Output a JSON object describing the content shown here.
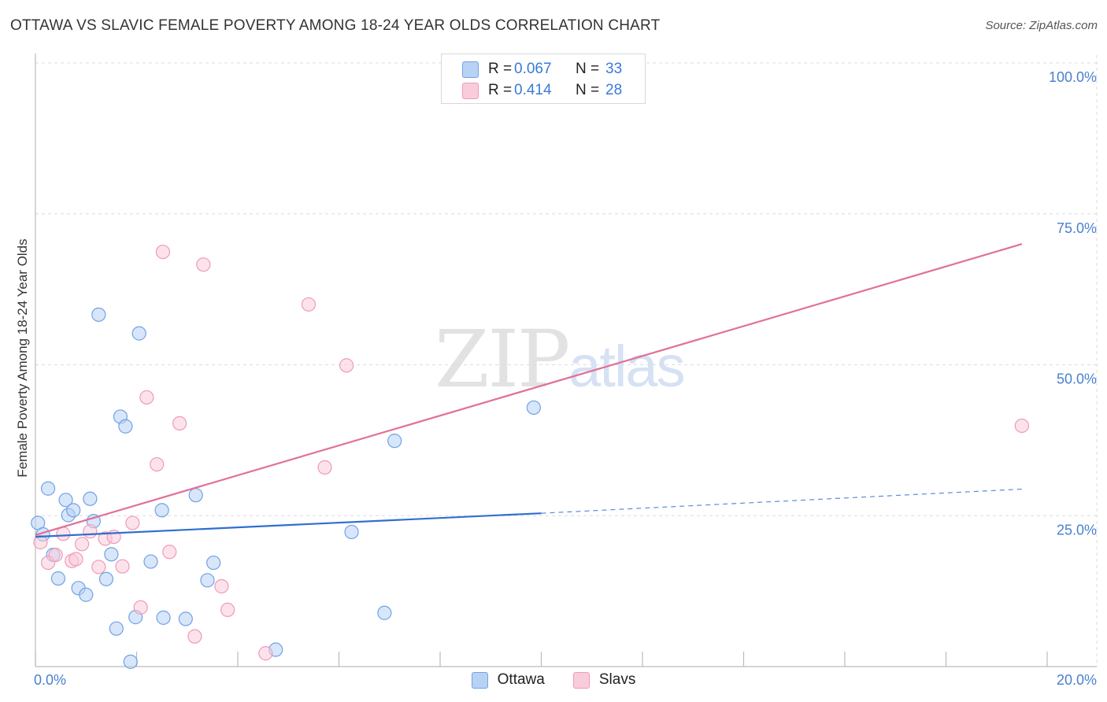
{
  "title": "OTTAWA VS SLAVIC FEMALE POVERTY AMONG 18-24 YEAR OLDS CORRELATION CHART",
  "source": "Source: ZipAtlas.com",
  "watermark": {
    "zip": "ZIP",
    "atlas": "atlas"
  },
  "legend": {
    "rows": [
      {
        "r_label": "R =",
        "r_value": "0.067",
        "n_label": "N =",
        "n_value": "33"
      },
      {
        "r_label": "R =",
        "r_value": "0.414",
        "n_label": "N =",
        "n_value": "28"
      }
    ]
  },
  "bottom_legend": [
    "Ottawa",
    "Slavs"
  ],
  "chart_data": {
    "type": "scatter",
    "title": "OTTAWA VS SLAVIC FEMALE POVERTY AMONG 18-24 YEAR OLDS CORRELATION CHART",
    "xlabel": "",
    "ylabel": "Female Poverty Among 18-24 Year Olds",
    "xlim": [
      0,
      20
    ],
    "ylim": [
      0,
      100
    ],
    "x_tick_labels": [
      "0.0%",
      "20.0%"
    ],
    "y_ticks": [
      25,
      50,
      75,
      100
    ],
    "y_tick_labels": [
      "25.0%",
      "50.0%",
      "75.0%",
      "100.0%"
    ],
    "series": [
      {
        "name": "Ottawa",
        "color": "#6fa3e6",
        "fill": "#b8d2f4",
        "line_color": "#2f6fd0",
        "trend": {
          "x0": 0,
          "y0": 21.5,
          "x1": 10,
          "y1": 25.4,
          "dash_to_x": 19.5,
          "dash_to_y": 29.4
        },
        "points": [
          [
            0.05,
            23.8
          ],
          [
            0.15,
            21.9
          ],
          [
            0.25,
            29.5
          ],
          [
            0.35,
            18.5
          ],
          [
            0.45,
            14.6
          ],
          [
            0.6,
            27.6
          ],
          [
            0.65,
            25.1
          ],
          [
            0.75,
            25.9
          ],
          [
            0.85,
            13.0
          ],
          [
            1.0,
            11.9
          ],
          [
            1.08,
            27.8
          ],
          [
            1.15,
            24.1
          ],
          [
            1.25,
            58.3
          ],
          [
            1.4,
            14.5
          ],
          [
            1.5,
            18.6
          ],
          [
            1.6,
            6.3
          ],
          [
            1.68,
            41.4
          ],
          [
            1.78,
            39.8
          ],
          [
            1.88,
            0.8
          ],
          [
            1.98,
            8.2
          ],
          [
            2.05,
            55.2
          ],
          [
            2.28,
            17.4
          ],
          [
            2.5,
            25.9
          ],
          [
            2.53,
            8.1
          ],
          [
            2.97,
            7.9
          ],
          [
            3.17,
            28.4
          ],
          [
            3.4,
            14.3
          ],
          [
            3.52,
            17.2
          ],
          [
            4.75,
            2.8
          ],
          [
            6.25,
            22.3
          ],
          [
            6.9,
            8.9
          ],
          [
            7.1,
            37.4
          ],
          [
            9.85,
            42.9
          ]
        ]
      },
      {
        "name": "Slavs",
        "color": "#f09ab6",
        "fill": "#f9ccdb",
        "line_color": "#e0709a",
        "trend": {
          "x0": 0,
          "y0": 21.8,
          "x1": 19.5,
          "y1": 70.0
        },
        "points": [
          [
            0.1,
            20.6
          ],
          [
            0.25,
            17.2
          ],
          [
            0.4,
            18.5
          ],
          [
            0.55,
            22.0
          ],
          [
            0.72,
            17.5
          ],
          [
            0.8,
            17.8
          ],
          [
            0.92,
            20.3
          ],
          [
            1.08,
            22.4
          ],
          [
            1.25,
            16.5
          ],
          [
            1.38,
            21.2
          ],
          [
            1.55,
            21.5
          ],
          [
            1.72,
            16.6
          ],
          [
            1.92,
            23.8
          ],
          [
            2.08,
            9.8
          ],
          [
            2.2,
            44.6
          ],
          [
            2.4,
            33.5
          ],
          [
            2.52,
            68.7
          ],
          [
            2.65,
            19.0
          ],
          [
            2.85,
            40.3
          ],
          [
            3.15,
            5.0
          ],
          [
            3.32,
            66.6
          ],
          [
            3.68,
            13.3
          ],
          [
            3.8,
            9.4
          ],
          [
            4.55,
            2.2
          ],
          [
            5.4,
            60.0
          ],
          [
            5.72,
            33.0
          ],
          [
            6.15,
            49.9
          ],
          [
            19.5,
            39.9
          ]
        ]
      }
    ]
  }
}
